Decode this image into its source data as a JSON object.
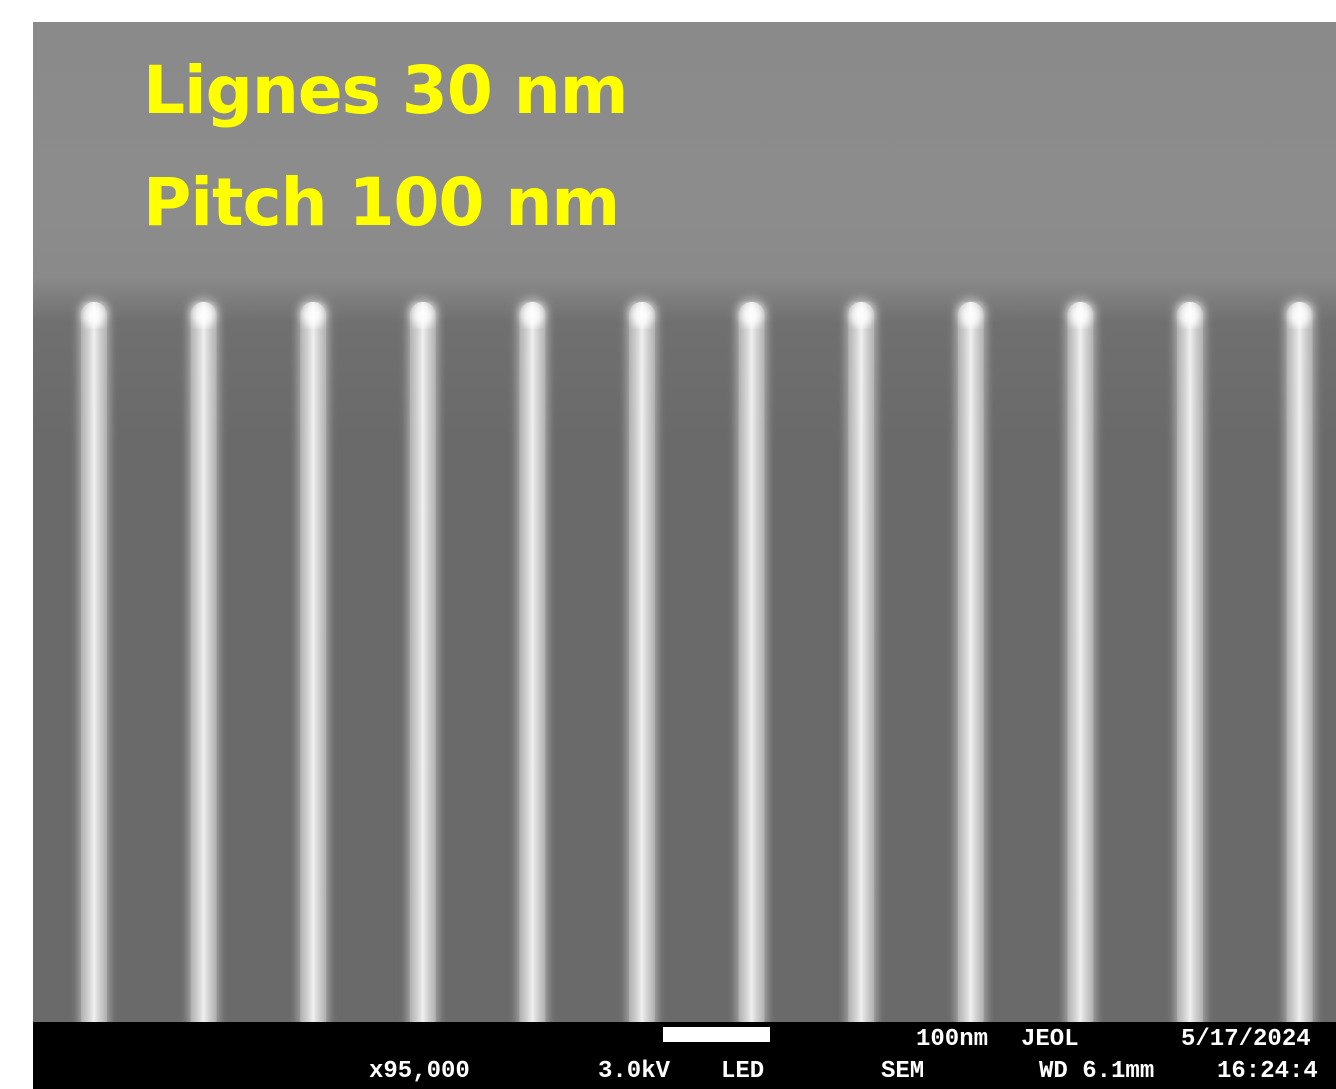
{
  "caption": {
    "line1": "Lignes 30 nm",
    "line2": "Pitch 100 nm",
    "color": "#ffff00"
  },
  "sem": {
    "line_count": 12,
    "line_color": "#e4e4e4",
    "background_color": "#6a6a6a"
  },
  "databar": {
    "magnification": "x95,000",
    "voltage": "3.0kV",
    "detector": "LED",
    "mode": "SEM",
    "scale_label": "100nm",
    "brand": "JEOL",
    "working_distance": "WD 6.1mm",
    "date": "5/17/2024",
    "time": "16:24:4"
  }
}
